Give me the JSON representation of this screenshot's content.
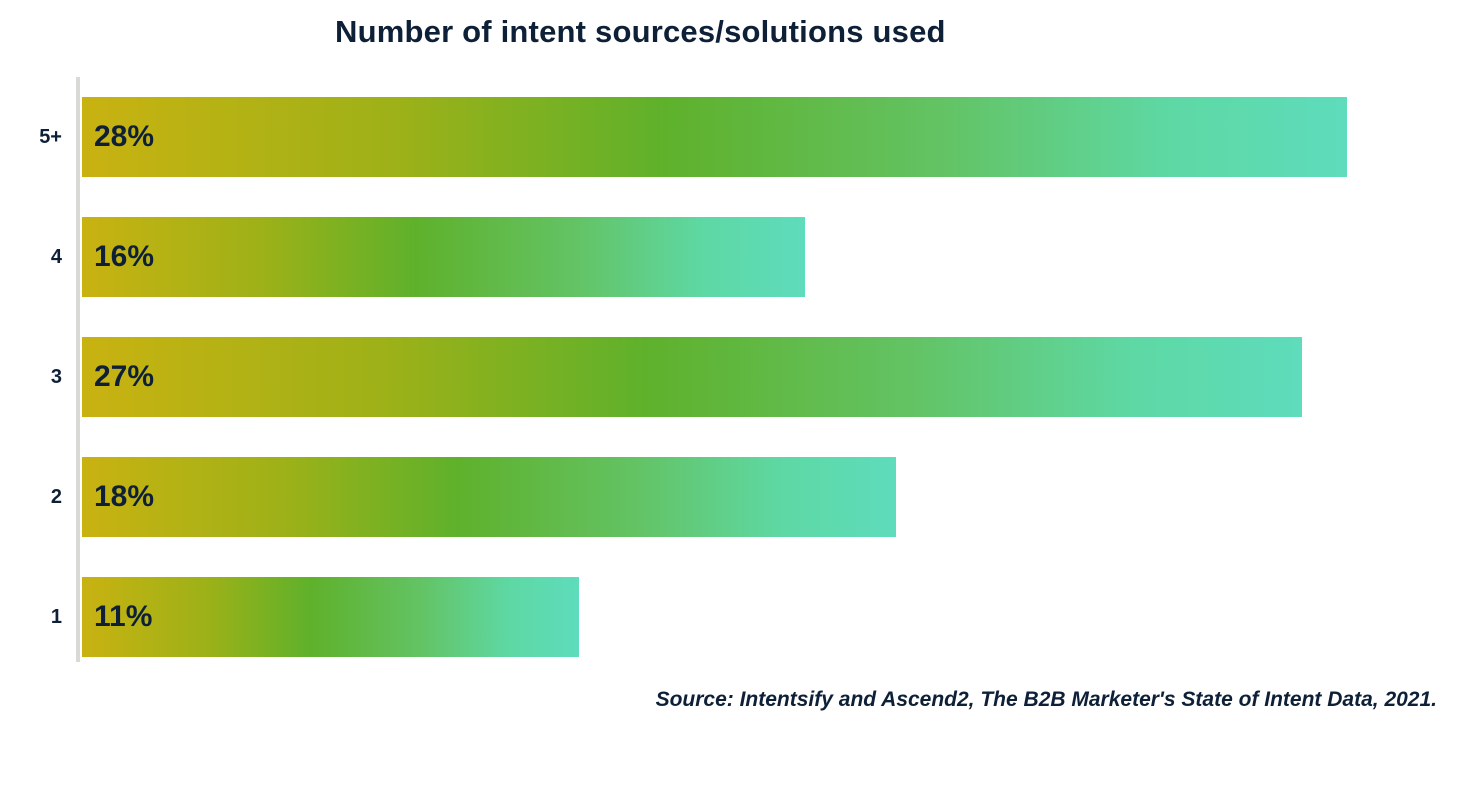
{
  "title": "Number of intent sources/solutions used",
  "source": "Source: Intentsify and Ascend2, The B2B Marketer's State of Intent Data, 2021.",
  "colors": {
    "text_navy": "#0E2038",
    "axis_line": "#D9D9D5",
    "bar_gradient": [
      "#C9B211",
      "#9DB118",
      "#5FB12B",
      "#63C364",
      "#5ED8A4",
      "#5EDCBC"
    ]
  },
  "chart_data": {
    "type": "bar",
    "orientation": "horizontal",
    "title": "Number of intent sources/solutions used",
    "categories": [
      "5+",
      "4",
      "3",
      "2",
      "1"
    ],
    "values": [
      28,
      16,
      27,
      18,
      11
    ],
    "value_labels": [
      "28%",
      "16%",
      "27%",
      "18%",
      "11%"
    ],
    "xlabel": "",
    "ylabel": "",
    "xlim": [
      0,
      30.8
    ],
    "grid": false,
    "legend": false,
    "annotation": "Source: Intentsify and Ascend2, The B2B Marketer's State of Intent Data, 2021."
  }
}
